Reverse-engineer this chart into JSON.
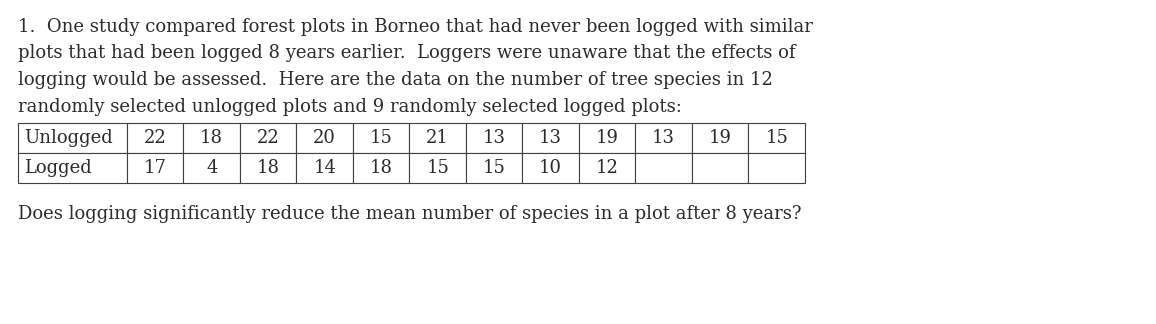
{
  "lines": [
    "1.  One study compared forest plots in Borneo that had never been logged with similar",
    "plots that had been logged 8 years earlier.  Loggers were unaware that the effects of",
    "logging would be assessed.  Here are the data on the number of tree species in 12",
    "randomly selected unlogged plots and 9 randomly selected logged plots:"
  ],
  "question": "Does logging significantly reduce the mean number of species in a plot after 8 years?",
  "row1_label": "Unlogged",
  "row2_label": "Logged",
  "row1_data": [
    "22",
    "18",
    "22",
    "20",
    "15",
    "21",
    "13",
    "13",
    "19",
    "13",
    "19",
    "15"
  ],
  "row2_data": [
    "17",
    "4",
    "18",
    "14",
    "18",
    "15",
    "15",
    "10",
    "12",
    "",
    "",
    ""
  ],
  "bg_color": "#ffffff",
  "text_color": "#2b2b2b",
  "font_size": 13.0,
  "question_font_size": 13.0,
  "table_font_size": 13.0,
  "figsize": [
    11.56,
    3.24
  ],
  "dpi": 100
}
